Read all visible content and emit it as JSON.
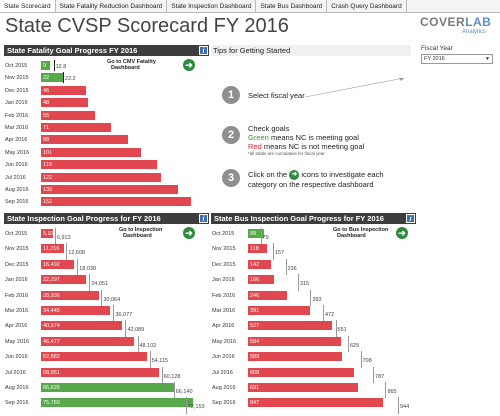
{
  "tabs": [
    "State Scorecard",
    "State Fatality Reduction Dashboard",
    "State Inspection Dashboard",
    "State Bus Dashboard",
    "Crash Query Dashboard"
  ],
  "title": "State CVSP Scorecard FY 2016",
  "logo": {
    "part1": "COVER",
    "part2": "LAB",
    "sub": "Analytics"
  },
  "info_icon_text": "i",
  "fatality": {
    "title": "State Fatality Goal Progress FY 2016",
    "goto": [
      "Go to CMV Fatality",
      "Dashboard"
    ],
    "rows": [
      {
        "month": "Oct 2015",
        "actual": 9,
        "goal": 12.8,
        "goal_label": "12.8",
        "status": "green"
      },
      {
        "month": "Nov 2015",
        "actual": 22,
        "goal": 22.2,
        "goal_label": "22.2",
        "status": "green"
      },
      {
        "month": "Dec 2015",
        "actual": 46,
        "goal": 0,
        "goal_label": "",
        "status": "red"
      },
      {
        "month": "Jan 2016",
        "actual": 48,
        "goal": 0,
        "goal_label": "",
        "status": "red"
      },
      {
        "month": "Feb 2016",
        "actual": 55,
        "goal": 0,
        "goal_label": "",
        "status": "red"
      },
      {
        "month": "Mar 2016",
        "actual": 71,
        "goal": 0,
        "goal_label": "",
        "status": "red"
      },
      {
        "month": "Apr 2016",
        "actual": 88,
        "goal": 0,
        "goal_label": "",
        "status": "red"
      },
      {
        "month": "May 2016",
        "actual": 101,
        "goal": 0,
        "goal_label": "",
        "status": "red"
      },
      {
        "month": "Jun 2016",
        "actual": 118,
        "goal": 0,
        "goal_label": "",
        "status": "red"
      },
      {
        "month": "Jul 2016",
        "actual": 122,
        "goal": 0,
        "goal_label": "",
        "status": "red"
      },
      {
        "month": "Aug 2016",
        "actual": 139,
        "goal": 0,
        "goal_label": "",
        "status": "red"
      },
      {
        "month": "Sep 2016",
        "actual": 152,
        "goal": 0,
        "goal_label": "",
        "status": "red"
      }
    ]
  },
  "tips": {
    "title": "Tips for Getting Started",
    "step1": "Select fiscal year",
    "step2_line1": "Check goals",
    "step2_green": "Green",
    "step2_green_rest": " means NC is meeting goal",
    "step2_red": "Red",
    "step2_red_rest": " means NC is not meeting goal",
    "step2_note": "*all totals are cumulative for fiscal year",
    "step3_line1a": "Click on the",
    "step3_line1b": "icons to investigate each",
    "step3_line2": "category on the respective dashboard",
    "numbers": [
      "1",
      "2",
      "3"
    ]
  },
  "fiscal_year": {
    "label": "Fiscal Year",
    "value": "FY 2016",
    "caret": "▼"
  },
  "inspection": {
    "title": "State Inspection Goal Progress for FY 2016",
    "goto": [
      "Go to Inspection",
      "Dashboard"
    ],
    "rows": [
      {
        "month": "Oct 2015",
        "actual": 5924,
        "actual_label": "5,924",
        "goal": 6913,
        "goal_label": "6,913",
        "status": "red"
      },
      {
        "month": "Nov 2015",
        "actual": 11216,
        "actual_label": "11,216",
        "goal": 12608,
        "goal_label": "12,608",
        "status": "red"
      },
      {
        "month": "Dec 2015",
        "actual": 16492,
        "actual_label": "16,492",
        "goal": 18038,
        "goal_label": "18,038",
        "status": "red"
      },
      {
        "month": "Jan 2016",
        "actual": 22297,
        "actual_label": "22,297",
        "goal": 24051,
        "goal_label": "24,051",
        "status": "red"
      },
      {
        "month": "Feb 2016",
        "actual": 28936,
        "actual_label": "28,936",
        "goal": 30064,
        "goal_label": "30,064",
        "status": "red"
      },
      {
        "month": "Mar 2016",
        "actual": 34445,
        "actual_label": "34,445",
        "goal": 36077,
        "goal_label": "36,077",
        "status": "red"
      },
      {
        "month": "Apr 2016",
        "actual": 40574,
        "actual_label": "40,574",
        "goal": 42089,
        "goal_label": "42,089",
        "status": "red"
      },
      {
        "month": "May 2016",
        "actual": 46477,
        "actual_label": "46,477",
        "goal": 48102,
        "goal_label": "48,102",
        "status": "red"
      },
      {
        "month": "Jun 2016",
        "actual": 52882,
        "actual_label": "52,882",
        "goal": 54115,
        "goal_label": "54,115",
        "status": "red"
      },
      {
        "month": "Jul 2016",
        "actual": 58951,
        "actual_label": "58,951",
        "goal": 60128,
        "goal_label": "60,128",
        "status": "red"
      },
      {
        "month": "Aug 2016",
        "actual": 66626,
        "actual_label": "66,626",
        "goal": 66140,
        "goal_label": "66,140",
        "status": "green"
      },
      {
        "month": "Sep 2016",
        "actual": 75760,
        "actual_label": "75,760",
        "goal": 72153,
        "goal_label": "72,153",
        "status": "green"
      }
    ]
  },
  "bus": {
    "title": "State Bus Inspection Goal Progress for FY 2016",
    "goto": [
      "Go to Bus Inspection",
      "Dashboard"
    ],
    "rows": [
      {
        "month": "Oct 2015",
        "actual": 99,
        "goal": 79,
        "goal_label": "79",
        "status": "green"
      },
      {
        "month": "Nov 2015",
        "actual": 118,
        "goal": 157,
        "goal_label": "157",
        "status": "red"
      },
      {
        "month": "Dec 2015",
        "actual": 142,
        "goal": 236,
        "goal_label": "236",
        "status": "red"
      },
      {
        "month": "Jan 2016",
        "actual": 166,
        "goal": 315,
        "goal_label": "315",
        "status": "red"
      },
      {
        "month": "Feb 2016",
        "actual": 246,
        "goal": 393,
        "goal_label": "393",
        "status": "red"
      },
      {
        "month": "Mar 2016",
        "actual": 391,
        "goal": 472,
        "goal_label": "472",
        "status": "red"
      },
      {
        "month": "Apr 2016",
        "actual": 527,
        "goal": 551,
        "goal_label": "551",
        "status": "red"
      },
      {
        "month": "May 2016",
        "actual": 584,
        "goal": 629,
        "goal_label": "629",
        "status": "red"
      },
      {
        "month": "Jun 2016",
        "actual": 589,
        "goal": 708,
        "goal_label": "708",
        "status": "red"
      },
      {
        "month": "Jul 2016",
        "actual": 668,
        "goal": 787,
        "goal_label": "787",
        "status": "red"
      },
      {
        "month": "Aug 2016",
        "actual": 691,
        "goal": 865,
        "goal_label": "865",
        "status": "red"
      },
      {
        "month": "Sep 2016",
        "actual": 847,
        "goal": 944,
        "goal_label": "944",
        "status": "red"
      }
    ]
  },
  "colors": {
    "red": "#e1474f",
    "green": "#57a84a",
    "header": "#3d3d3d",
    "arrow": "#2d8a3e"
  },
  "arrow_glyph": "➜"
}
